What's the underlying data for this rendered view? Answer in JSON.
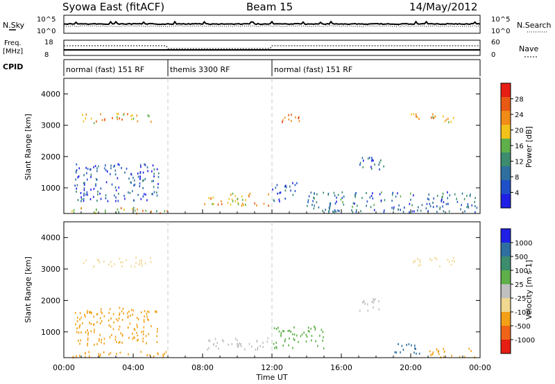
{
  "header": {
    "station": "Syowa East (fitACF)",
    "beam": "Beam 15",
    "date": "14/May/2012"
  },
  "sky_panel": {
    "left_label": "N.Sky",
    "right_label": "N.Search",
    "ticks_left": [
      "10^5",
      "10^0"
    ],
    "ticks_right": [
      "10^5",
      "10^0"
    ]
  },
  "freq_panel": {
    "left_label_top": "Freq.",
    "left_label_bottom": "[MHz]",
    "right_label": "Nave",
    "ticks_left": [
      "18",
      "8"
    ],
    "ticks_right": [
      "60",
      "0"
    ]
  },
  "cpid": {
    "label": "CPID",
    "segments": [
      {
        "text": "normal (fast) 151 RF",
        "start_h": 0,
        "end_h": 6
      },
      {
        "text": "themis 3300 RF",
        "start_h": 6,
        "end_h": 12
      },
      {
        "text": "normal (fast) 151 RF",
        "start_h": 12,
        "end_h": 24
      }
    ]
  },
  "colors": {
    "power_scale": [
      "#1f1fe6",
      "#1f50c8",
      "#2e6fa0",
      "#3c8c6e",
      "#5fb04a",
      "#f2c21a",
      "#f28c18",
      "#e85a14",
      "#e61e14"
    ],
    "velocity_scale": [
      "#1f1fe6",
      "#2e6fa0",
      "#3c8c6e",
      "#5fb04a",
      "#c0c0c0",
      "#f0d890",
      "#f2a018",
      "#f06418",
      "#e61e14"
    ],
    "grey_dash": "#c8c8c8"
  },
  "chart_data": [
    {
      "type": "heatmap",
      "title": "",
      "xlabel": "Time UT",
      "ylabel": "Slant Range [km]",
      "xlim_hours": [
        0,
        24
      ],
      "ylim_km": [
        180,
        4500
      ],
      "x_ticks": [
        "00:00",
        "04:00",
        "08:00",
        "12:00",
        "16:00",
        "20:00",
        "00:00"
      ],
      "x_tick_hours": [
        0,
        4,
        8,
        12,
        16,
        20,
        24
      ],
      "y_ticks": [
        1000,
        2000,
        3000,
        4000
      ],
      "colorbar_label": "Power [dB]",
      "colorbar_ticks": [
        "28",
        "24",
        "20",
        "16",
        "12",
        "8",
        "4"
      ],
      "colorbar_range": [
        0,
        30
      ],
      "data_regions": [
        {
          "t0": 0.4,
          "t1": 6.0,
          "r0": 200,
          "r1": 400,
          "level": 18
        },
        {
          "t0": 0.6,
          "t1": 5.5,
          "r0": 600,
          "r1": 1800,
          "level": 6
        },
        {
          "t0": 8.0,
          "t1": 11.8,
          "r0": 450,
          "r1": 850,
          "level": 20
        },
        {
          "t0": 12.0,
          "t1": 13.5,
          "r0": 600,
          "r1": 1200,
          "level": 5
        },
        {
          "t0": 17.0,
          "t1": 18.5,
          "r0": 1600,
          "r1": 2100,
          "level": 7
        },
        {
          "t0": 14.0,
          "t1": 23.8,
          "r0": 250,
          "r1": 900,
          "level": 8
        },
        {
          "t0": 1.0,
          "t1": 5.0,
          "r0": 3100,
          "r1": 3400,
          "level": 20
        },
        {
          "t0": 12.5,
          "t1": 14.0,
          "r0": 3100,
          "r1": 3400,
          "level": 22
        },
        {
          "t0": 20.0,
          "t1": 22.5,
          "r0": 3100,
          "r1": 3400,
          "level": 20
        }
      ]
    },
    {
      "type": "heatmap",
      "title": "",
      "xlabel": "Time UT",
      "ylabel": "Slant Range [km]",
      "xlim_hours": [
        0,
        24
      ],
      "ylim_km": [
        180,
        4500
      ],
      "x_ticks": [
        "00:00",
        "04:00",
        "08:00",
        "12:00",
        "16:00",
        "20:00",
        "00:00"
      ],
      "x_tick_hours": [
        0,
        4,
        8,
        12,
        16,
        20,
        24
      ],
      "y_ticks": [
        1000,
        2000,
        3000,
        4000
      ],
      "colorbar_label": "Velocity [m s-1]",
      "colorbar_ticks": [
        "1000",
        "500",
        "100",
        "25",
        "-25",
        "-100",
        "-500",
        "-1000"
      ],
      "data_regions": [
        {
          "t0": 0.4,
          "t1": 6.0,
          "r0": 200,
          "r1": 400,
          "level": -150
        },
        {
          "t0": 0.6,
          "t1": 5.5,
          "r0": 600,
          "r1": 1800,
          "level": -200
        },
        {
          "t0": 8.0,
          "t1": 11.8,
          "r0": 450,
          "r1": 850,
          "level": 0
        },
        {
          "t0": 12.0,
          "t1": 15.0,
          "r0": 500,
          "r1": 1200,
          "level": 80
        },
        {
          "t0": 17.0,
          "t1": 18.5,
          "r0": 1700,
          "r1": 2100,
          "level": 0
        },
        {
          "t0": 19.0,
          "t1": 20.5,
          "r0": 300,
          "r1": 700,
          "level": 300
        },
        {
          "t0": 21.0,
          "t1": 23.8,
          "r0": 200,
          "r1": 500,
          "level": -200
        },
        {
          "t0": 1.0,
          "t1": 5.0,
          "r0": 3100,
          "r1": 3400,
          "level": -60
        },
        {
          "t0": 20.0,
          "t1": 22.5,
          "r0": 3100,
          "r1": 3400,
          "level": -60
        }
      ]
    }
  ]
}
